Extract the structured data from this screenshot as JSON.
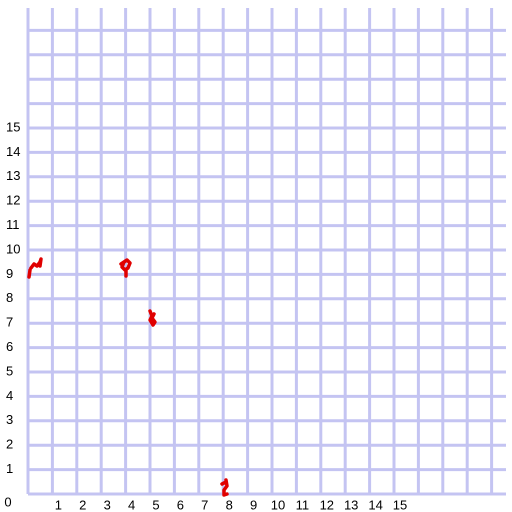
{
  "x_labels": [
    0,
    1,
    2,
    3,
    4,
    5,
    6,
    7,
    8,
    9,
    10,
    11,
    12,
    13,
    14,
    15
  ],
  "y_labels": [
    1,
    2,
    3,
    4,
    5,
    6,
    7,
    8,
    9,
    10,
    11,
    12,
    13,
    14,
    15
  ]
}
